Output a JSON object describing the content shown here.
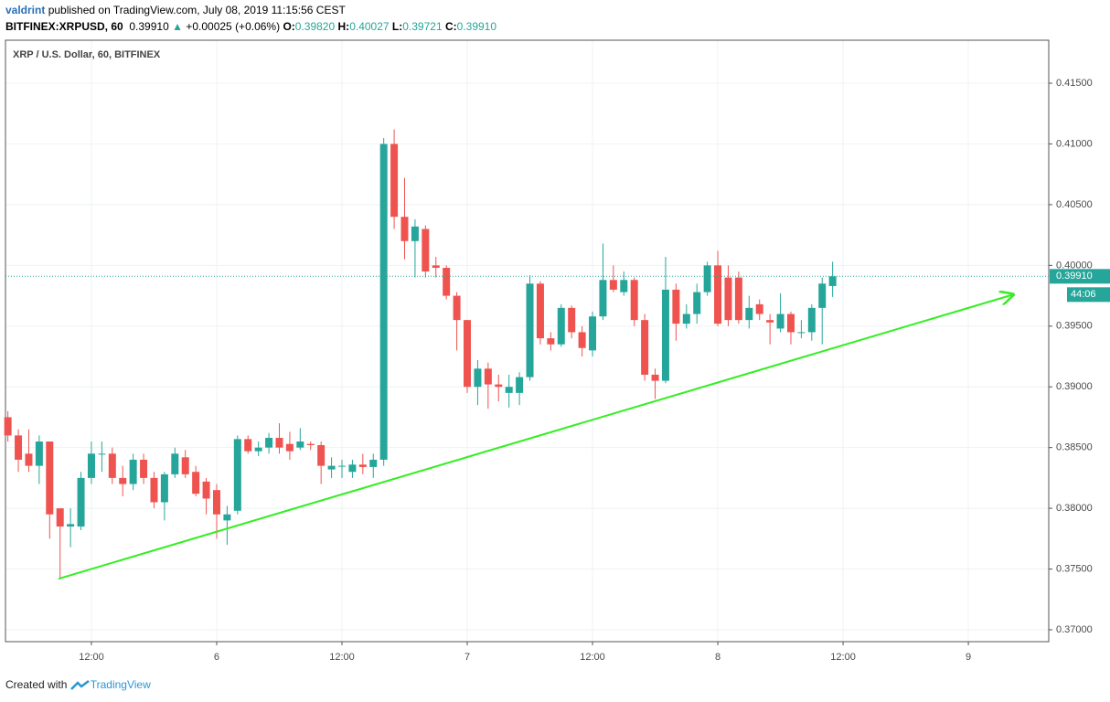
{
  "header": {
    "author": "valdrint",
    "published": "published on TradingView.com, July 08, 2019 11:15:56 CEST",
    "symbol": "BITFINEX:XRPUSD, 60",
    "price": "0.39910",
    "change_arrow": "▲",
    "change": "+0.00025 (+0.06%)",
    "ohlc": [
      {
        "label": "O:",
        "value": "0.39820"
      },
      {
        "label": "H:",
        "value": "0.40027"
      },
      {
        "label": "L:",
        "value": "0.39721"
      },
      {
        "label": "C:",
        "value": "0.39910"
      }
    ]
  },
  "chart_data": {
    "type": "candlestick",
    "title": "XRP / U.S. Dollar, 60, BITFINEX",
    "up_color": "#26a69a",
    "down_color": "#ef5350",
    "grid": true,
    "xlim": [
      3.77,
      103.7
    ],
    "ylim": [
      0.36902,
      0.41854
    ],
    "xticks": [
      {
        "value": 12,
        "label": "12:00"
      },
      {
        "value": 24,
        "label": "6"
      },
      {
        "value": 36,
        "label": "12:00"
      },
      {
        "value": 48,
        "label": "7"
      },
      {
        "value": 60,
        "label": "12:00"
      },
      {
        "value": 72,
        "label": "8"
      },
      {
        "value": 84,
        "label": "12:00"
      },
      {
        "value": 96,
        "label": "9"
      }
    ],
    "yticks": [
      {
        "value": 0.37,
        "label": "0.37000"
      },
      {
        "value": 0.375,
        "label": "0.37500"
      },
      {
        "value": 0.38,
        "label": "0.38000"
      },
      {
        "value": 0.385,
        "label": "0.38500"
      },
      {
        "value": 0.39,
        "label": "0.39000"
      },
      {
        "value": 0.395,
        "label": "0.39500"
      },
      {
        "value": 0.4,
        "label": "0.40000"
      },
      {
        "value": 0.405,
        "label": "0.40500"
      },
      {
        "value": 0.41,
        "label": "0.41000"
      },
      {
        "value": 0.415,
        "label": "0.41500"
      }
    ],
    "x": [
      4,
      5,
      6,
      7,
      8,
      9,
      10,
      11,
      12,
      13,
      14,
      15,
      16,
      17,
      18,
      19,
      20,
      21,
      22,
      23,
      24,
      25,
      26,
      27,
      28,
      29,
      30,
      31,
      32,
      33,
      34,
      35,
      36,
      37,
      38,
      39,
      40,
      41,
      42,
      43,
      44,
      45,
      46,
      47,
      48,
      49,
      50,
      51,
      52,
      53,
      54,
      55,
      56,
      57,
      58,
      59,
      60,
      61,
      62,
      63,
      64,
      65,
      66,
      67,
      68,
      69,
      70,
      71,
      72,
      73,
      74,
      75,
      76,
      77,
      78,
      79,
      80,
      81,
      82,
      83
    ],
    "open": [
      0.3875,
      0.386,
      0.3845,
      0.3835,
      0.3855,
      0.38,
      0.3785,
      0.3785,
      0.3825,
      0.3845,
      0.3845,
      0.3825,
      0.382,
      0.384,
      0.3825,
      0.3805,
      0.3828,
      0.3842,
      0.383,
      0.3822,
      0.3815,
      0.379,
      0.3798,
      0.3857,
      0.3847,
      0.385,
      0.3858,
      0.3853,
      0.385,
      0.3853,
      0.3852,
      0.3832,
      0.3835,
      0.383,
      0.3836,
      0.3834,
      0.384,
      0.41,
      0.404,
      0.402,
      0.403,
      0.4,
      0.3998,
      0.3975,
      0.3955,
      0.39,
      0.3915,
      0.3902,
      0.3895,
      0.3895,
      0.3908,
      0.3985,
      0.394,
      0.3935,
      0.3965,
      0.3945,
      0.393,
      0.3958,
      0.3988,
      0.3978,
      0.3988,
      0.3955,
      0.391,
      0.3905,
      0.398,
      0.3952,
      0.396,
      0.3978,
      0.4,
      0.399,
      0.399,
      0.3955,
      0.3968,
      0.3955,
      0.3948,
      0.396,
      0.3945,
      0.3945,
      0.3965,
      0.3983
    ],
    "high": [
      0.388,
      0.3865,
      0.3865,
      0.386,
      0.3855,
      0.38,
      0.38,
      0.383,
      0.3855,
      0.3855,
      0.385,
      0.3835,
      0.3845,
      0.3845,
      0.383,
      0.383,
      0.385,
      0.3848,
      0.3835,
      0.3825,
      0.382,
      0.3802,
      0.386,
      0.386,
      0.3855,
      0.3862,
      0.387,
      0.3863,
      0.3866,
      0.3855,
      0.3855,
      0.3842,
      0.384,
      0.384,
      0.3845,
      0.3845,
      0.4105,
      0.4112,
      0.4072,
      0.4038,
      0.4033,
      0.4007,
      0.4,
      0.3978,
      0.3955,
      0.3922,
      0.392,
      0.391,
      0.391,
      0.3912,
      0.3992,
      0.3987,
      0.3945,
      0.3968,
      0.3967,
      0.395,
      0.3962,
      0.4018,
      0.4,
      0.3995,
      0.399,
      0.396,
      0.3915,
      0.4007,
      0.3985,
      0.3968,
      0.3985,
      0.4003,
      0.4012,
      0.4,
      0.3995,
      0.3975,
      0.3972,
      0.396,
      0.3977,
      0.3962,
      0.3955,
      0.3968,
      0.399,
      0.4003
    ],
    "low": [
      0.3855,
      0.383,
      0.383,
      0.382,
      0.3775,
      0.3742,
      0.3768,
      0.3782,
      0.382,
      0.383,
      0.382,
      0.381,
      0.3815,
      0.382,
      0.38,
      0.379,
      0.3825,
      0.3825,
      0.381,
      0.3795,
      0.3775,
      0.377,
      0.3795,
      0.3845,
      0.3843,
      0.3845,
      0.3845,
      0.384,
      0.3848,
      0.3848,
      0.382,
      0.3825,
      0.3825,
      0.3825,
      0.3828,
      0.3825,
      0.3835,
      0.403,
      0.4005,
      0.399,
      0.399,
      0.399,
      0.3972,
      0.393,
      0.3895,
      0.3885,
      0.3882,
      0.3888,
      0.3883,
      0.3885,
      0.3905,
      0.3935,
      0.393,
      0.3933,
      0.394,
      0.3925,
      0.3925,
      0.3955,
      0.3978,
      0.3975,
      0.395,
      0.3905,
      0.389,
      0.3903,
      0.3938,
      0.3948,
      0.3952,
      0.3975,
      0.395,
      0.395,
      0.3952,
      0.3948,
      0.3955,
      0.3935,
      0.3945,
      0.3935,
      0.394,
      0.3938,
      0.3935,
      0.3974
    ],
    "close": [
      0.386,
      0.384,
      0.3835,
      0.3855,
      0.3795,
      0.3785,
      0.3787,
      0.3825,
      0.3845,
      0.3845,
      0.3825,
      0.382,
      0.384,
      0.3825,
      0.3805,
      0.3828,
      0.3845,
      0.3828,
      0.3812,
      0.3808,
      0.3795,
      0.3795,
      0.3857,
      0.3847,
      0.385,
      0.3858,
      0.385,
      0.3847,
      0.3855,
      0.3852,
      0.3835,
      0.3835,
      0.3835,
      0.3836,
      0.3834,
      0.384,
      0.41,
      0.404,
      0.402,
      0.4032,
      0.3995,
      0.3998,
      0.3975,
      0.3955,
      0.39,
      0.3915,
      0.3902,
      0.39,
      0.39,
      0.3908,
      0.3985,
      0.394,
      0.3935,
      0.3965,
      0.3945,
      0.3932,
      0.3958,
      0.3988,
      0.398,
      0.3988,
      0.3955,
      0.391,
      0.3905,
      0.398,
      0.3952,
      0.396,
      0.3978,
      0.4,
      0.3952,
      0.3955,
      0.3955,
      0.3965,
      0.396,
      0.3953,
      0.396,
      0.3945,
      0.3945,
      0.3965,
      0.3985,
      0.3991
    ],
    "last_price": {
      "value": 0.3991,
      "label": "0.39910"
    },
    "countdown": "44:06",
    "trend_line": {
      "x": [
        8.85,
        100.3
      ],
      "y": [
        0.3742,
        0.3976
      ],
      "color": "#33ee22"
    }
  },
  "footer": {
    "text": "Created with",
    "brand": "TradingView"
  }
}
